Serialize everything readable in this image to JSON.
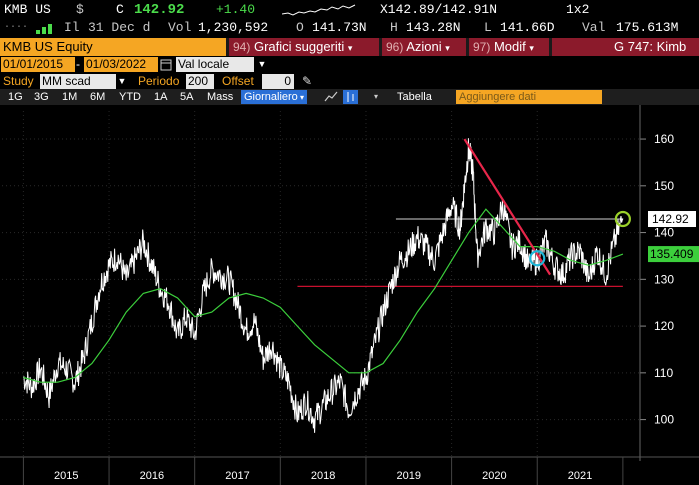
{
  "header": {
    "ticker": "KMB US",
    "currency": "$",
    "last_label": "C",
    "last": "142.92",
    "change": "+1.40",
    "bid_ask": "X142.89/142.91N",
    "window": "1x2",
    "date_label": "Il",
    "date": "31 Dec d",
    "vol_label": "Vol",
    "vol": "1,230,592",
    "open_label": "O",
    "open": "141.73N",
    "high_label": "H",
    "high": "143.28N",
    "low_label": "L",
    "low": "141.66D",
    "val_label": "Val",
    "val": "175.613M"
  },
  "titlebar": {
    "security": "KMB US Equity",
    "menu1_num": "94)",
    "menu1": "Grafici suggeriti",
    "menu2_num": "96)",
    "menu2": "Azioni",
    "menu3_num": "97)",
    "menu3": "Modif",
    "function": "G 747: Kimb"
  },
  "params": {
    "start_date": "01/01/2015",
    "end_date": "01/03/2022",
    "currency_mode": "Val locale",
    "study_label": "Study",
    "study": "MM scad",
    "period_label": "Periodo",
    "period": "200",
    "offset_label": "Offset",
    "offset": "0"
  },
  "toolbar": {
    "ranges": [
      "1G",
      "3G",
      "1M",
      "6M",
      "YTD",
      "1A",
      "5A",
      "Mass"
    ],
    "frequency": "Giornaliero",
    "table": "Tabella",
    "add_data": "Aggiungere dati"
  },
  "colors": {
    "accent": "#f5a623",
    "menu_bg": "#8b1a2b",
    "price_line": "#ffffff",
    "ma_line": "#3ccf3c",
    "trend_line": "#e8264a",
    "support_line": "#c8102e",
    "last_label_bg": "#ffffff",
    "ma_label_bg": "#3ccf3c"
  },
  "chart_data": {
    "type": "line",
    "x_labels": [
      "2015",
      "2016",
      "2017",
      "2018",
      "2019",
      "2020",
      "2021"
    ],
    "y_ticks": [
      100,
      110,
      120,
      130,
      140,
      150,
      160
    ],
    "ylim": [
      92,
      166
    ],
    "last_price_label": "142.92",
    "ma_label": "135.409",
    "series": [
      {
        "key": "price",
        "x": [
          2015.0,
          2015.1,
          2015.2,
          2015.3,
          2015.4,
          2015.5,
          2015.6,
          2015.7,
          2015.8,
          2015.9,
          2016.0,
          2016.1,
          2016.2,
          2016.3,
          2016.4,
          2016.5,
          2016.6,
          2016.7,
          2016.8,
          2016.9,
          2017.0,
          2017.1,
          2017.2,
          2017.3,
          2017.4,
          2017.5,
          2017.6,
          2017.7,
          2017.8,
          2017.9,
          2018.0,
          2018.1,
          2018.2,
          2018.3,
          2018.4,
          2018.5,
          2018.6,
          2018.7,
          2018.8,
          2018.9,
          2019.0,
          2019.1,
          2019.2,
          2019.3,
          2019.4,
          2019.5,
          2019.6,
          2019.7,
          2019.8,
          2019.9,
          2020.0,
          2020.1,
          2020.15,
          2020.2,
          2020.25,
          2020.3,
          2020.4,
          2020.5,
          2020.6,
          2020.7,
          2020.8,
          2020.9,
          2021.0,
          2021.1,
          2021.2,
          2021.3,
          2021.4,
          2021.5,
          2021.6,
          2021.7,
          2021.8,
          2021.9,
          2022.0
        ],
        "values": [
          109,
          107,
          111,
          105,
          112,
          111,
          108,
          113,
          121,
          129,
          133,
          135,
          130,
          134,
          138,
          133,
          128,
          125,
          118,
          122,
          118,
          127,
          132,
          131,
          130,
          125,
          119,
          121,
          113,
          116,
          111,
          108,
          101,
          104,
          100,
          103,
          106,
          108,
          102,
          106,
          109,
          116,
          123,
          129,
          134,
          136,
          139,
          137,
          134,
          140,
          146,
          141,
          150,
          158,
          153,
          135,
          141,
          140,
          146,
          137,
          138,
          133,
          134,
          138,
          133,
          131,
          135,
          136,
          130,
          136,
          131,
          138,
          143
        ]
      },
      {
        "key": "ma",
        "x": [
          2015.0,
          2015.2,
          2015.4,
          2015.6,
          2015.8,
          2016.0,
          2016.2,
          2016.4,
          2016.6,
          2016.8,
          2017.0,
          2017.2,
          2017.4,
          2017.6,
          2017.8,
          2018.0,
          2018.2,
          2018.4,
          2018.6,
          2018.8,
          2019.0,
          2019.2,
          2019.4,
          2019.6,
          2019.8,
          2020.0,
          2020.2,
          2020.4,
          2020.6,
          2020.8,
          2021.0,
          2021.2,
          2021.4,
          2021.6,
          2021.8,
          2022.0
        ],
        "values": [
          109,
          108,
          108,
          109,
          112,
          117,
          123,
          127,
          128,
          126,
          122,
          123,
          126,
          127,
          126,
          124,
          120,
          116,
          113,
          110,
          110,
          112,
          117,
          123,
          128,
          134,
          140,
          145,
          141,
          137,
          137,
          136,
          134,
          133,
          134,
          135.4
        ]
      }
    ],
    "annotations": [
      {
        "type": "trend_line",
        "from": [
          2020.15,
          160
        ],
        "to": [
          2021.15,
          131
        ]
      },
      {
        "type": "support_line",
        "y": 128.5,
        "x_from": 2018.2,
        "x_to": 2022.0
      },
      {
        "type": "resistance_line",
        "y": 142.9,
        "x_from": 2019.35,
        "x_to": 2022.0
      },
      {
        "type": "circle_marker",
        "x": 2021.0,
        "y": 134.5
      },
      {
        "type": "circle_marker",
        "x": 2022.0,
        "y": 142.9
      }
    ]
  }
}
